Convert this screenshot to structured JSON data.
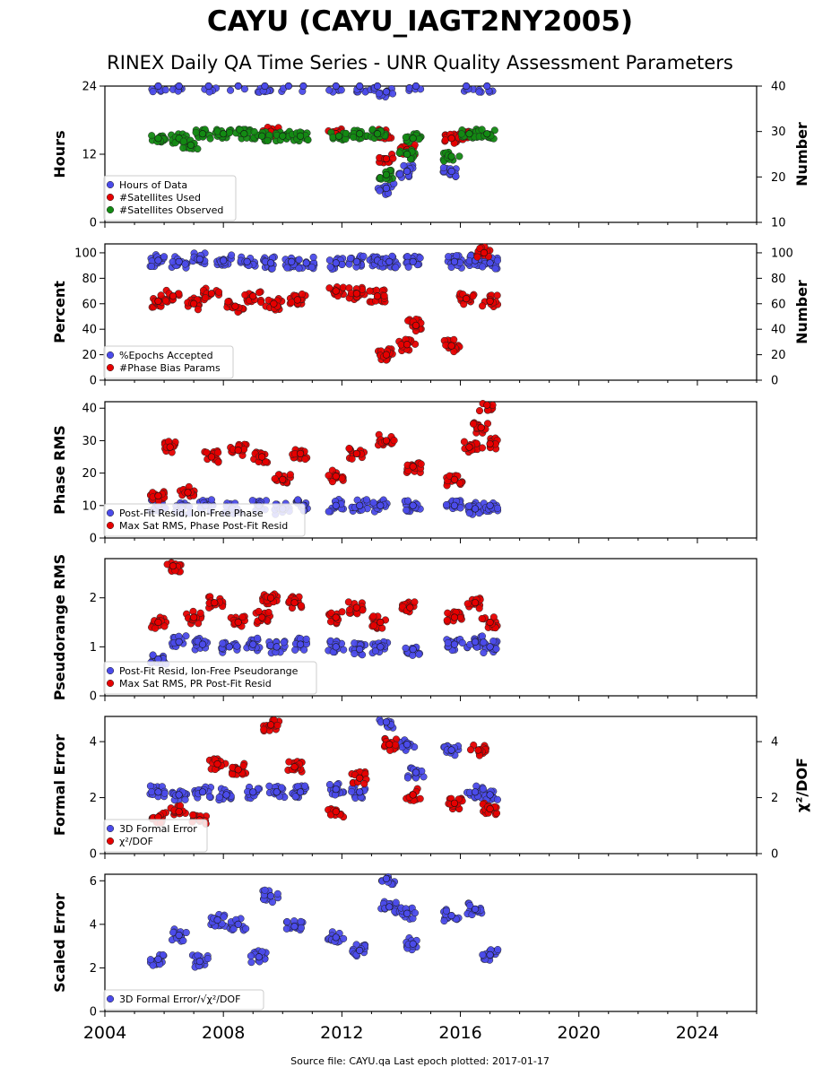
{
  "title": "CAYU (CAYU_IAGT2NY2005)",
  "subtitle": "RINEX Daily QA Time Series - UNR Quality Assessment Parameters",
  "footer": "Source file: CAYU.qa Last epoch plotted: 2017-01-17",
  "colors": {
    "blue": "#4b4bea",
    "red": "#e60000",
    "green": "#138a13"
  },
  "chart_data": [
    {
      "type": "scatter",
      "ylabel": "Hours",
      "ylabel_right": "Number",
      "ylim": [
        0,
        24
      ],
      "yticks": [
        0,
        12,
        24
      ],
      "ylim_right": [
        10,
        40
      ],
      "yticks_right": [
        10,
        20,
        30,
        40
      ],
      "legend": "lower-left",
      "series": [
        {
          "name": "Hours of Data",
          "color": "blue",
          "axis": "left",
          "points": [
            [
              2005.8,
              24
            ],
            [
              2006.5,
              24
            ],
            [
              2007.5,
              24
            ],
            [
              2008.5,
              24
            ],
            [
              2009.4,
              24
            ],
            [
              2010.2,
              24
            ],
            [
              2010.7,
              24
            ],
            [
              2011.8,
              24
            ],
            [
              2012.6,
              24
            ],
            [
              2013.2,
              24
            ],
            [
              2013.5,
              23
            ],
            [
              2013.5,
              6
            ],
            [
              2014.2,
              9
            ],
            [
              2014.5,
              24
            ],
            [
              2015.7,
              9
            ],
            [
              2016.2,
              24
            ],
            [
              2016.9,
              24
            ]
          ]
        },
        {
          "name": "#Satellites Used",
          "color": "red",
          "axis": "right",
          "points": [
            [
              2009.6,
              30
            ],
            [
              2011.8,
              29.5
            ],
            [
              2013.5,
              24
            ],
            [
              2014.2,
              26
            ],
            [
              2015.7,
              28.5
            ],
            [
              2013.4,
              29.5
            ],
            [
              2016.2,
              29
            ]
          ]
        },
        {
          "name": "#Satellites Observed",
          "color": "green",
          "axis": "right",
          "points": [
            [
              2005.8,
              28.5
            ],
            [
              2006.5,
              28.5
            ],
            [
              2006.9,
              27
            ],
            [
              2007.3,
              29.5
            ],
            [
              2008.0,
              29.5
            ],
            [
              2008.7,
              29.5
            ],
            [
              2009.3,
              29
            ],
            [
              2010.0,
              29
            ],
            [
              2010.6,
              29
            ],
            [
              2011.9,
              29
            ],
            [
              2012.6,
              29.5
            ],
            [
              2013.2,
              29.5
            ],
            [
              2013.5,
              20.5
            ],
            [
              2014.2,
              25
            ],
            [
              2014.4,
              28.5
            ],
            [
              2015.7,
              24.5
            ],
            [
              2016.3,
              29.5
            ],
            [
              2016.9,
              29.5
            ]
          ]
        }
      ]
    },
    {
      "type": "scatter",
      "ylabel": "Percent",
      "ylabel_right": "Number",
      "ylim": [
        0,
        107
      ],
      "yticks": [
        0,
        20,
        40,
        60,
        80,
        100
      ],
      "ylim_right": [
        0,
        107
      ],
      "yticks_right": [
        0,
        20,
        40,
        60,
        80,
        100
      ],
      "legend": "lower-left",
      "series": [
        {
          "name": "%Epochs Accepted",
          "color": "blue",
          "axis": "left",
          "points": [
            [
              2005.8,
              94
            ],
            [
              2006.5,
              93
            ],
            [
              2007.2,
              95
            ],
            [
              2008.0,
              94
            ],
            [
              2008.8,
              93
            ],
            [
              2009.6,
              92
            ],
            [
              2010.3,
              93
            ],
            [
              2010.8,
              92
            ],
            [
              2011.8,
              92
            ],
            [
              2012.5,
              93
            ],
            [
              2013.2,
              94
            ],
            [
              2013.6,
              93
            ],
            [
              2014.4,
              93
            ],
            [
              2015.8,
              93
            ],
            [
              2016.5,
              94
            ],
            [
              2017.0,
              92
            ]
          ]
        },
        {
          "name": "#Phase Bias Params",
          "color": "red",
          "axis": "right",
          "points": [
            [
              2005.8,
              62
            ],
            [
              2006.3,
              66
            ],
            [
              2007.0,
              60
            ],
            [
              2007.6,
              68
            ],
            [
              2008.4,
              58
            ],
            [
              2009.0,
              66
            ],
            [
              2009.7,
              60
            ],
            [
              2010.5,
              63
            ],
            [
              2011.8,
              70
            ],
            [
              2012.5,
              68
            ],
            [
              2013.2,
              66
            ],
            [
              2013.5,
              20
            ],
            [
              2014.2,
              28
            ],
            [
              2014.5,
              43
            ],
            [
              2015.7,
              27
            ],
            [
              2016.2,
              64
            ],
            [
              2016.8,
              100
            ],
            [
              2017.0,
              62
            ]
          ]
        }
      ]
    },
    {
      "type": "scatter",
      "ylabel": "Phase RMS",
      "ylim": [
        0,
        42
      ],
      "yticks": [
        0,
        10,
        20,
        30,
        40
      ],
      "legend": "lower-left",
      "series": [
        {
          "name": "Post-Fit Resid, Ion-Free Phase",
          "color": "blue",
          "points": [
            [
              2005.8,
              10
            ],
            [
              2006.6,
              9
            ],
            [
              2007.4,
              10
            ],
            [
              2008.3,
              9
            ],
            [
              2009.2,
              10
            ],
            [
              2010.0,
              9
            ],
            [
              2010.7,
              10
            ],
            [
              2011.8,
              10
            ],
            [
              2012.6,
              10
            ],
            [
              2013.3,
              10
            ],
            [
              2014.4,
              10
            ],
            [
              2015.8,
              10
            ],
            [
              2016.5,
              9
            ],
            [
              2017.0,
              10
            ]
          ]
        },
        {
          "name": "Max Sat RMS, Phase Post-Fit Resid",
          "color": "red",
          "points": [
            [
              2005.8,
              13
            ],
            [
              2006.2,
              28
            ],
            [
              2006.8,
              14
            ],
            [
              2007.6,
              25
            ],
            [
              2008.5,
              27
            ],
            [
              2009.3,
              25
            ],
            [
              2010.0,
              18
            ],
            [
              2010.6,
              26
            ],
            [
              2011.8,
              19
            ],
            [
              2012.5,
              26
            ],
            [
              2013.5,
              30
            ],
            [
              2014.4,
              22
            ],
            [
              2015.8,
              18
            ],
            [
              2016.3,
              28
            ],
            [
              2016.7,
              34
            ],
            [
              2016.9,
              41
            ],
            [
              2017.0,
              29
            ]
          ]
        }
      ]
    },
    {
      "type": "scatter",
      "ylabel": "Pseudorange RMS",
      "ylim": [
        0,
        2.8
      ],
      "yticks": [
        0,
        1,
        2
      ],
      "legend": "lower-left",
      "series": [
        {
          "name": "Post-Fit Resid, Ion-Free Pseudorange",
          "color": "blue",
          "points": [
            [
              2005.8,
              0.75
            ],
            [
              2006.5,
              1.1
            ],
            [
              2007.3,
              1.05
            ],
            [
              2008.2,
              1.0
            ],
            [
              2009.0,
              1.05
            ],
            [
              2009.8,
              1.0
            ],
            [
              2010.6,
              1.05
            ],
            [
              2011.8,
              1.0
            ],
            [
              2012.6,
              0.95
            ],
            [
              2013.3,
              1.0
            ],
            [
              2014.4,
              0.95
            ],
            [
              2015.8,
              1.05
            ],
            [
              2016.5,
              1.1
            ],
            [
              2017.0,
              1.0
            ]
          ]
        },
        {
          "name": "Max Sat RMS, PR Post-Fit Resid",
          "color": "red",
          "points": [
            [
              2005.8,
              1.5
            ],
            [
              2006.3,
              2.65
            ],
            [
              2007.0,
              1.6
            ],
            [
              2007.7,
              1.9
            ],
            [
              2008.5,
              1.5
            ],
            [
              2009.3,
              1.6
            ],
            [
              2009.6,
              2.0
            ],
            [
              2010.4,
              1.9
            ],
            [
              2011.8,
              1.6
            ],
            [
              2012.5,
              1.8
            ],
            [
              2013.3,
              1.5
            ],
            [
              2014.3,
              1.8
            ],
            [
              2015.8,
              1.6
            ],
            [
              2016.5,
              1.9
            ],
            [
              2017.0,
              1.5
            ]
          ]
        }
      ]
    },
    {
      "type": "scatter",
      "ylabel": "Formal Error",
      "ylabel_right": "χ²/DOF",
      "ylim": [
        0,
        4.9
      ],
      "yticks": [
        0,
        2,
        4
      ],
      "ylim_right": [
        0,
        4.9
      ],
      "yticks_right": [
        0,
        2,
        4
      ],
      "legend": "lower-left",
      "series": [
        {
          "name": "3D Formal Error",
          "color": "blue",
          "axis": "left",
          "points": [
            [
              2005.8,
              2.2
            ],
            [
              2006.5,
              2.1
            ],
            [
              2007.3,
              2.2
            ],
            [
              2008.1,
              2.1
            ],
            [
              2009.0,
              2.2
            ],
            [
              2009.8,
              2.2
            ],
            [
              2010.6,
              2.2
            ],
            [
              2011.8,
              2.3
            ],
            [
              2012.6,
              2.2
            ],
            [
              2013.5,
              4.7
            ],
            [
              2014.2,
              3.9
            ],
            [
              2014.5,
              2.9
            ],
            [
              2015.7,
              3.7
            ],
            [
              2016.5,
              2.2
            ],
            [
              2017.0,
              2.1
            ]
          ]
        },
        {
          "name": "χ²/DOF",
          "color": "red",
          "axis": "right",
          "points": [
            [
              2005.8,
              1.3
            ],
            [
              2006.5,
              1.5
            ],
            [
              2007.2,
              1.2
            ],
            [
              2007.8,
              3.2
            ],
            [
              2008.5,
              3.0
            ],
            [
              2009.6,
              4.6
            ],
            [
              2010.4,
              3.1
            ],
            [
              2011.8,
              1.5
            ],
            [
              2012.6,
              2.7
            ],
            [
              2013.6,
              3.9
            ],
            [
              2014.4,
              2.1
            ],
            [
              2015.8,
              1.8
            ],
            [
              2016.6,
              3.7
            ],
            [
              2017.0,
              1.6
            ]
          ]
        }
      ]
    },
    {
      "type": "scatter",
      "ylabel": "Scaled Error",
      "ylim": [
        0,
        6.3
      ],
      "yticks": [
        0,
        2,
        4,
        6
      ],
      "xlim": [
        2004,
        2026
      ],
      "xticks": [
        2004,
        2008,
        2012,
        2016,
        2020,
        2024
      ],
      "legend": "lower-left",
      "series": [
        {
          "name": "3D Formal Error/√χ²/DOF",
          "color": "blue",
          "points": [
            [
              2005.8,
              2.4
            ],
            [
              2006.5,
              3.5
            ],
            [
              2007.2,
              2.3
            ],
            [
              2007.8,
              4.2
            ],
            [
              2008.5,
              4.0
            ],
            [
              2009.2,
              2.5
            ],
            [
              2009.6,
              5.3
            ],
            [
              2010.4,
              3.9
            ],
            [
              2011.8,
              3.4
            ],
            [
              2012.6,
              2.8
            ],
            [
              2013.5,
              6.1
            ],
            [
              2013.6,
              4.8
            ],
            [
              2014.2,
              4.5
            ],
            [
              2014.4,
              3.1
            ],
            [
              2015.7,
              4.4
            ],
            [
              2016.5,
              4.7
            ],
            [
              2017.0,
              2.6
            ]
          ]
        }
      ]
    }
  ]
}
